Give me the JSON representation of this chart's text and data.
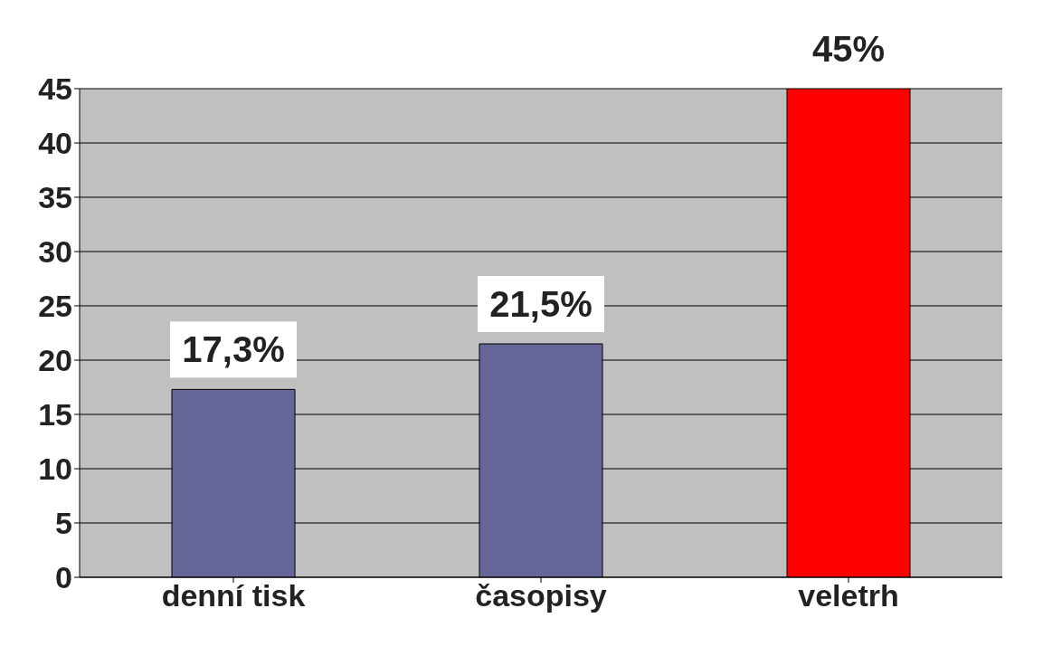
{
  "chart_data": {
    "type": "bar",
    "categories": [
      "denní tisk",
      "časopisy",
      "veletrh"
    ],
    "values": [
      17.3,
      21.5,
      45
    ],
    "colors": [
      "#666699",
      "#666699",
      "#ff0000"
    ],
    "value_labels": [
      "17,3%",
      "21,5%",
      "45%"
    ],
    "ylim": [
      0,
      45
    ],
    "yticks": [
      0,
      5,
      10,
      15,
      20,
      25,
      30,
      35,
      40,
      45
    ],
    "grid": "y"
  }
}
